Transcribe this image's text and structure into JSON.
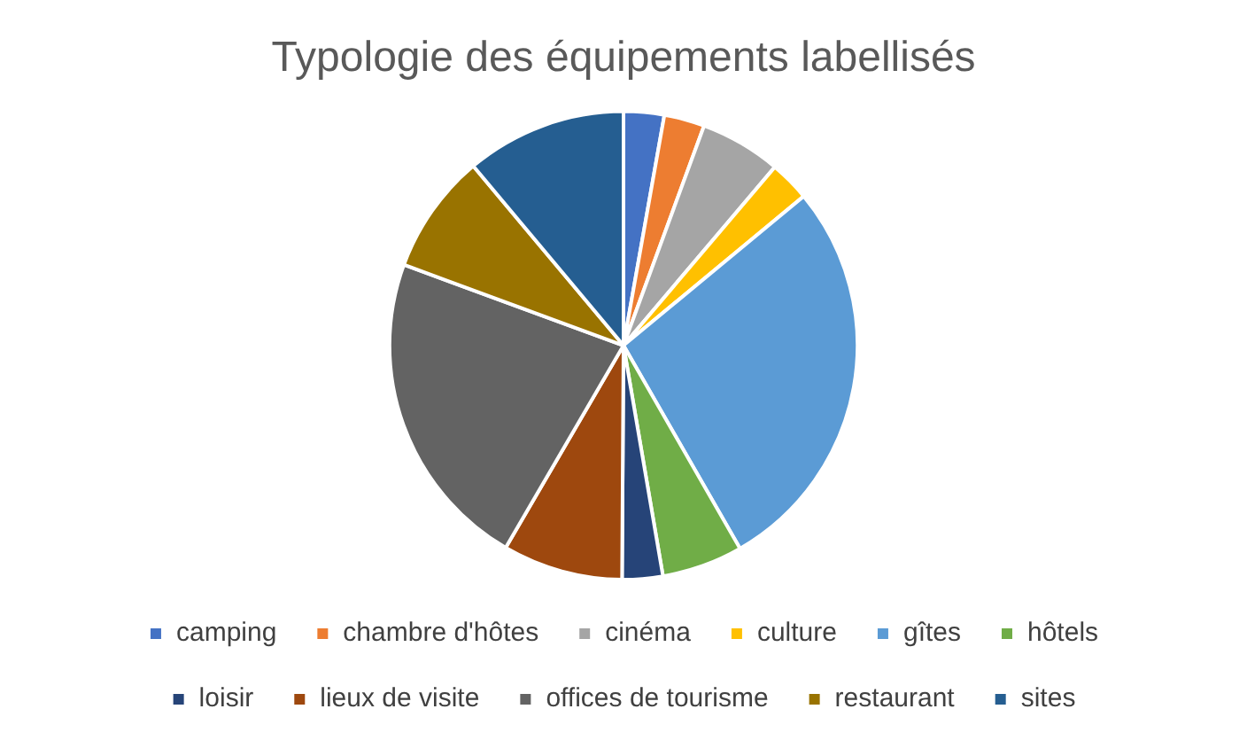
{
  "chart_data": {
    "type": "pie",
    "title": "Typologie des équipements labellisés",
    "categories": [
      "camping",
      "chambre d'hôtes",
      "cinéma",
      "culture",
      "gîtes",
      "hôtels",
      "loisir",
      "lieux de visite",
      "offices de tourisme",
      "restaurant",
      "sites"
    ],
    "values": [
      2.8,
      2.8,
      5.6,
      2.8,
      27.7,
      5.6,
      2.8,
      8.3,
      22.2,
      8.3,
      11.1
    ],
    "colors": [
      "#4472c4",
      "#ed7d31",
      "#a5a5a5",
      "#ffc000",
      "#5b9bd5",
      "#70ad47",
      "#264478",
      "#9e480e",
      "#636363",
      "#997300",
      "#255e91"
    ],
    "legend": "bottom"
  }
}
